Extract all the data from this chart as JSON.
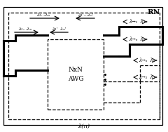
{
  "fig_width": 2.4,
  "fig_height": 1.88,
  "dpi": 100,
  "bg_color": "#ffffff",
  "rn_label": "RN",
  "awg_label": "NxN\nAWG",
  "bottom_label": "λ(n)",
  "lc": "#000000",
  "lw_thick": 2.2,
  "lw_thin": 0.9,
  "lw_dash": 0.9,
  "top_left_label": "λ₁...λₙ",
  "top_right_label": "λ₁'...λₙ'",
  "mid_left_label": "λ₁...λₙ",
  "mid_right_label": "λ₁'  λₙ'",
  "out1_label": "λ→₁  λ₁",
  "out2_label": "λ→ₙ  λₙ",
  "out3_label": "λ→ₙ  λₙ",
  "out4_label": "λ→₁  λ₁"
}
